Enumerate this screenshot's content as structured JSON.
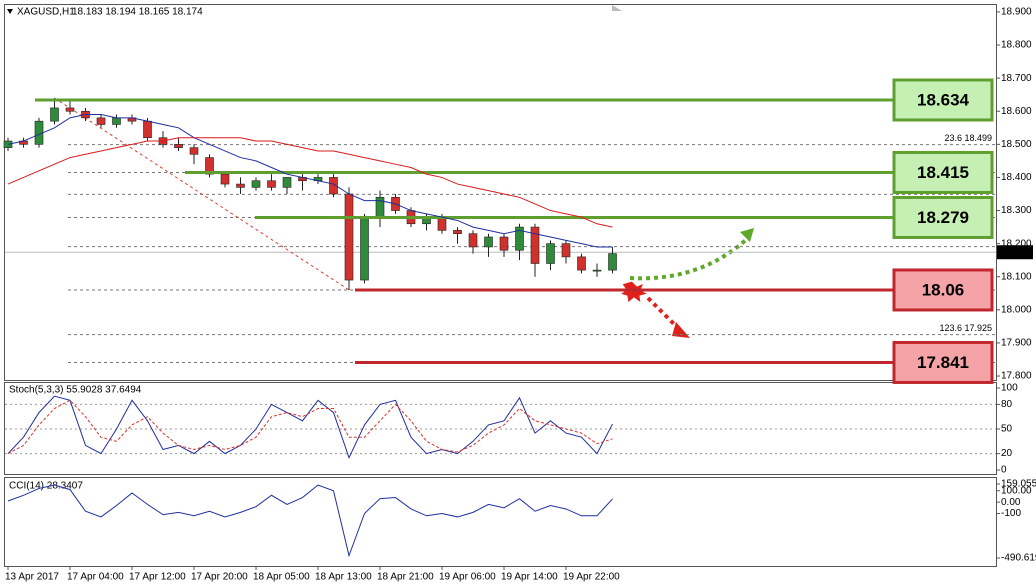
{
  "chart_data": [
    {
      "type": "candlestick",
      "title": "XAGUSD,H1",
      "subtitle": "18.183 18.194 18.165 18.174",
      "categories": [
        "13 Apr 2017",
        null,
        null,
        null,
        "17 Apr 04:00",
        null,
        null,
        null,
        "17 Apr 12:00",
        null,
        null,
        null,
        "17 Apr 20:00",
        null,
        null,
        null,
        "18 Apr 05:00",
        null,
        null,
        null,
        "18 Apr 13:00",
        null,
        null,
        null,
        "18 Apr 21:00",
        null,
        null,
        null,
        "19 Apr 06:00",
        null,
        null,
        null,
        "19 Apr 14:00",
        null,
        null,
        null,
        "19 Apr 22:00",
        null,
        null,
        null
      ],
      "open": [
        18.49,
        18.51,
        18.5,
        18.57,
        18.61,
        18.6,
        18.58,
        18.56,
        18.58,
        18.57,
        18.52,
        18.5,
        18.49,
        18.46,
        18.41,
        18.38,
        18.37,
        18.39,
        18.37,
        18.4,
        18.39,
        18.4,
        18.35,
        18.09,
        18.28,
        18.34,
        18.3,
        18.26,
        18.28,
        18.24,
        18.23,
        18.19,
        18.22,
        18.18,
        18.25,
        18.14,
        18.2,
        18.16,
        18.12,
        18.12
      ],
      "high": [
        18.52,
        18.52,
        18.58,
        18.64,
        18.63,
        18.61,
        18.59,
        18.59,
        18.59,
        18.58,
        18.54,
        18.52,
        18.5,
        18.47,
        18.42,
        18.4,
        18.4,
        18.41,
        18.4,
        18.41,
        18.41,
        18.41,
        18.37,
        18.29,
        18.36,
        18.35,
        18.31,
        18.29,
        18.29,
        18.25,
        18.24,
        18.23,
        18.23,
        18.26,
        18.26,
        18.21,
        18.21,
        18.17,
        18.14,
        18.19
      ],
      "low": [
        18.48,
        18.49,
        18.49,
        18.56,
        18.59,
        18.57,
        18.55,
        18.55,
        18.56,
        18.51,
        18.49,
        18.48,
        18.44,
        18.4,
        18.37,
        18.35,
        18.36,
        18.36,
        18.35,
        18.36,
        18.38,
        18.34,
        18.06,
        18.08,
        18.25,
        18.29,
        18.25,
        18.24,
        18.23,
        18.2,
        18.17,
        18.16,
        18.16,
        18.15,
        18.1,
        18.12,
        18.14,
        18.11,
        18.1,
        18.11
      ],
      "close": [
        18.51,
        18.5,
        18.57,
        18.61,
        18.6,
        18.58,
        18.56,
        18.58,
        18.57,
        18.52,
        18.5,
        18.49,
        18.47,
        18.41,
        18.38,
        18.37,
        18.39,
        18.37,
        18.4,
        18.39,
        18.4,
        18.35,
        18.09,
        18.28,
        18.34,
        18.3,
        18.26,
        18.28,
        18.24,
        18.23,
        18.19,
        18.22,
        18.18,
        18.25,
        18.14,
        18.2,
        18.16,
        18.12,
        18.12,
        18.17
      ],
      "up_color": "#2e8b3a",
      "down_color": "#d0312d",
      "series": [
        {
          "color": "#1f2fa0",
          "values": [
            18.5,
            18.51,
            18.53,
            18.55,
            18.58,
            18.59,
            18.59,
            18.58,
            18.58,
            18.57,
            18.56,
            18.55,
            18.52,
            18.5,
            18.48,
            18.46,
            18.45,
            18.43,
            18.41,
            18.4,
            18.39,
            18.38,
            18.35,
            18.33,
            18.33,
            18.32,
            18.3,
            18.29,
            18.28,
            18.27,
            18.25,
            18.24,
            18.23,
            18.24,
            18.23,
            18.22,
            18.21,
            18.2,
            18.19,
            18.19
          ]
        },
        {
          "color": "#d81b1b",
          "values": [
            18.38,
            18.4,
            18.42,
            18.44,
            18.46,
            18.47,
            18.48,
            18.49,
            18.5,
            18.51,
            18.51,
            18.52,
            18.52,
            18.52,
            18.52,
            18.52,
            18.51,
            18.51,
            18.5,
            18.49,
            18.48,
            18.48,
            18.47,
            18.46,
            18.45,
            18.44,
            18.43,
            18.41,
            18.4,
            18.38,
            18.37,
            18.36,
            18.35,
            18.34,
            18.32,
            18.3,
            18.29,
            18.28,
            18.26,
            18.25
          ]
        }
      ],
      "levels": [
        {
          "value": 18.634,
          "color": "#5f9f30",
          "fill": "#c6efb3"
        },
        {
          "value": 18.415,
          "color": "#5f9f30",
          "fill": "#c6efb3"
        },
        {
          "value": 18.279,
          "color": "#5f9f30",
          "fill": "#c6efb3"
        },
        {
          "value": 18.06,
          "color": "#c0272d",
          "fill": "#f4a3a6"
        },
        {
          "value": 17.841,
          "color": "#c0272d",
          "fill": "#f4a3a6"
        }
      ],
      "dashed_levels": [
        18.499,
        18.415,
        18.349,
        18.279,
        18.191,
        18.06,
        17.925,
        17.841
      ],
      "annotations": [
        "23.6  18.499",
        "123.6  17.925"
      ],
      "last_price": 18.174,
      "ylim": [
        17.788,
        18.924
      ],
      "yticks": [
        {
          "value": 17.8,
          "label": "17.800"
        },
        {
          "value": 17.9,
          "label": "17.900"
        },
        {
          "value": 18.0,
          "label": "18.000"
        },
        {
          "value": 18.1,
          "label": "18.100"
        },
        {
          "value": 18.2,
          "label": "18.200"
        },
        {
          "value": 18.3,
          "label": "18.300"
        },
        {
          "value": 18.4,
          "label": "18.400"
        },
        {
          "value": 18.5,
          "label": "18.500"
        },
        {
          "value": 18.6,
          "label": "18.600"
        },
        {
          "value": 18.7,
          "label": "18.700"
        },
        {
          "value": 18.8,
          "label": "18.800"
        },
        {
          "value": 18.9,
          "label": "18.900"
        }
      ]
    },
    {
      "type": "line",
      "title": "Stoch(5,3,3) 55.9028 37.6494",
      "series": [
        {
          "color": "#1f2fa0",
          "values": [
            20,
            40,
            70,
            90,
            85,
            30,
            20,
            50,
            85,
            60,
            25,
            30,
            20,
            35,
            20,
            30,
            50,
            80,
            70,
            60,
            85,
            70,
            15,
            55,
            80,
            85,
            40,
            20,
            25,
            20,
            35,
            55,
            60,
            88,
            45,
            60,
            45,
            40,
            20,
            56
          ]
        },
        {
          "color": "#e0302a",
          "dashed": true,
          "values": [
            20,
            30,
            55,
            75,
            85,
            65,
            40,
            35,
            55,
            65,
            45,
            30,
            25,
            30,
            25,
            30,
            40,
            65,
            70,
            65,
            75,
            75,
            40,
            40,
            60,
            80,
            60,
            35,
            25,
            22,
            30,
            45,
            55,
            75,
            60,
            55,
            50,
            45,
            32,
            38
          ]
        }
      ],
      "ylim": [
        0,
        100
      ],
      "yticks": [
        0,
        20,
        50,
        80,
        100
      ],
      "grid": true
    },
    {
      "type": "line",
      "title": "CCI(14) 28.3407",
      "series": [
        {
          "color": "#1f2fa0",
          "values": [
            10,
            60,
            120,
            150,
            110,
            -80,
            -130,
            -30,
            80,
            -20,
            -110,
            -90,
            -120,
            -80,
            -130,
            -90,
            -40,
            60,
            -20,
            40,
            150,
            100,
            -470,
            -100,
            30,
            40,
            -60,
            -120,
            -100,
            -130,
            -90,
            -20,
            -50,
            30,
            -80,
            -30,
            -60,
            -120,
            -120,
            28
          ]
        }
      ],
      "ylim": [
        -490.619,
        159.0557
      ],
      "yticks": [
        -490.619,
        -100,
        {
          "value": 0,
          "label": "0.00"
        },
        {
          "value": 100,
          "label": "100.00"
        },
        159.0557
      ],
      "grid": true
    }
  ]
}
